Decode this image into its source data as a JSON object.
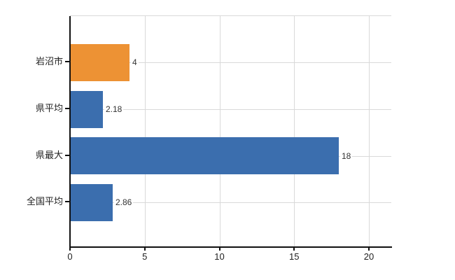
{
  "chart_data": {
    "type": "bar",
    "orientation": "horizontal",
    "categories": [
      "岩沼市",
      "県平均",
      "県最大",
      "全国平均"
    ],
    "values": [
      4,
      2.18,
      18,
      2.86
    ],
    "value_labels": [
      "4",
      "2.18",
      "18",
      "2.86"
    ],
    "bar_color_keys": [
      "highlight",
      "default",
      "default",
      "default"
    ],
    "series_colors": {
      "highlight": "#ED9234",
      "default": "#3B6EAE"
    },
    "x_ticks": [
      {
        "value": 0,
        "label": "0"
      },
      {
        "value": 5,
        "label": "5"
      },
      {
        "value": 10,
        "label": "10"
      },
      {
        "value": 15,
        "label": "15"
      },
      {
        "value": 20,
        "label": "20"
      }
    ],
    "xlim": [
      0,
      21.5
    ],
    "grid": true,
    "legend_position": "none"
  },
  "colors": {
    "background": "#ffffff",
    "axis": "#111111",
    "grid": "#d9d9d9",
    "category_text": "#222222",
    "tick_text": "#222222",
    "value_text": "#333333"
  }
}
